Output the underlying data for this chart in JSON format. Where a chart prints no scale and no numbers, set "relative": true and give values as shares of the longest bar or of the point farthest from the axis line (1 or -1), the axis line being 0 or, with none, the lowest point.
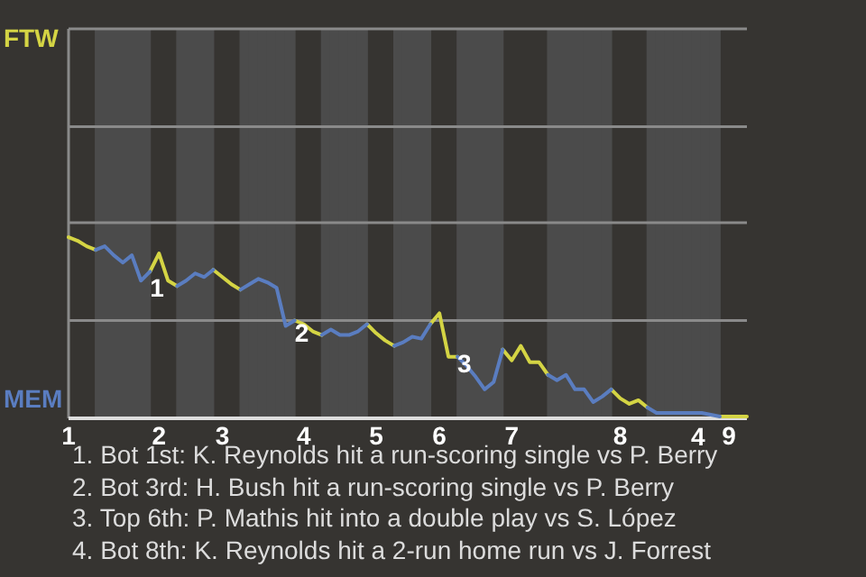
{
  "chart_data": {
    "type": "line",
    "relative": true,
    "legend": false,
    "marker": "none",
    "line_style": "solid",
    "categories": [
      "1",
      null,
      null,
      null,
      null,
      null,
      null,
      null,
      null,
      null,
      "2",
      null,
      null,
      null,
      null,
      null,
      null,
      "3",
      null,
      null,
      null,
      null,
      null,
      null,
      null,
      null,
      "4",
      null,
      null,
      null,
      null,
      null,
      null,
      null,
      "5",
      null,
      null,
      null,
      null,
      null,
      null,
      "6",
      null,
      null,
      null,
      null,
      null,
      null,
      null,
      "7",
      null,
      null,
      null,
      null,
      null,
      null,
      null,
      null,
      null,
      null,
      null,
      "8",
      null,
      null,
      null,
      null,
      null,
      null,
      null,
      null,
      null,
      null,
      null,
      "9",
      null,
      null
    ],
    "series": [
      {
        "color": "#5a7dc0",
        "values": [
          null,
          null,
          null,
          0.93,
          0.95,
          0.9,
          0.86,
          0.9,
          0.76,
          0.81,
          null,
          null,
          0.73,
          0.76,
          0.8,
          0.78,
          0.82,
          null,
          null,
          0.71,
          0.74,
          0.77,
          0.75,
          0.72,
          0.51,
          0.54,
          null,
          null,
          0.46,
          0.49,
          0.46,
          0.46,
          0.48,
          0.52,
          null,
          null,
          0.4,
          0.42,
          0.45,
          0.44,
          0.52,
          null,
          null,
          0.34,
          0.29,
          0.23,
          0.16,
          0.2,
          0.38,
          null,
          null,
          null,
          null,
          0.24,
          0.21,
          0.24,
          0.16,
          0.16,
          0.09,
          0.12,
          0.16,
          null,
          null,
          null,
          0.06,
          0.03,
          0.03,
          0.03,
          0.03,
          0.03,
          0.03,
          0.02,
          0.01,
          null,
          null,
          null
        ]
      },
      {
        "color": "#d4d444",
        "values": [
          1.0,
          0.98,
          0.95,
          0.93,
          null,
          null,
          null,
          null,
          null,
          0.81,
          0.91,
          0.76,
          0.73,
          null,
          null,
          null,
          0.82,
          0.78,
          0.74,
          0.71,
          null,
          null,
          null,
          null,
          null,
          0.54,
          0.52,
          0.48,
          0.46,
          null,
          null,
          null,
          null,
          0.52,
          0.47,
          0.43,
          0.4,
          null,
          null,
          null,
          0.52,
          0.58,
          0.34,
          0.34,
          null,
          null,
          null,
          null,
          0.38,
          0.32,
          0.4,
          0.31,
          0.31,
          0.24,
          null,
          null,
          null,
          null,
          null,
          null,
          0.16,
          0.11,
          0.08,
          0.1,
          0.06,
          null,
          null,
          null,
          null,
          null,
          null,
          null,
          0.01,
          0.01,
          0.01,
          0.01
        ]
      }
    ],
    "ref_lines": [
      {
        "axis": "y",
        "value": 0.54,
        "color": "#8a8a8a"
      },
      {
        "axis": "y",
        "value": 1.08,
        "color": "#8a8a8a"
      },
      {
        "axis": "y",
        "value": 1.61,
        "color": "#8a8a8a"
      },
      {
        "axis": "y",
        "value": 2.15,
        "color": "#8a8a8a"
      }
    ],
    "annotations": [
      "FTW",
      "MEM",
      {
        "text": "1",
        "y": 0.76
      },
      {
        "text": "2",
        "y": 0.51
      },
      {
        "text": "3",
        "y": 0.34
      },
      {
        "text": "4",
        "y": 0.02
      },
      "1. Bot 1st: K. Reynolds hit a run-scoring single vs P. Berry",
      "2. Bot 3rd: H. Bush hit a run-scoring single vs P. Berry",
      "3. Top 6th: P. Mathis hit into a double play vs S. López",
      "4. Bot 8th: K. Reynolds hit a 2-run home run vs J. Forrest"
    ]
  }
}
